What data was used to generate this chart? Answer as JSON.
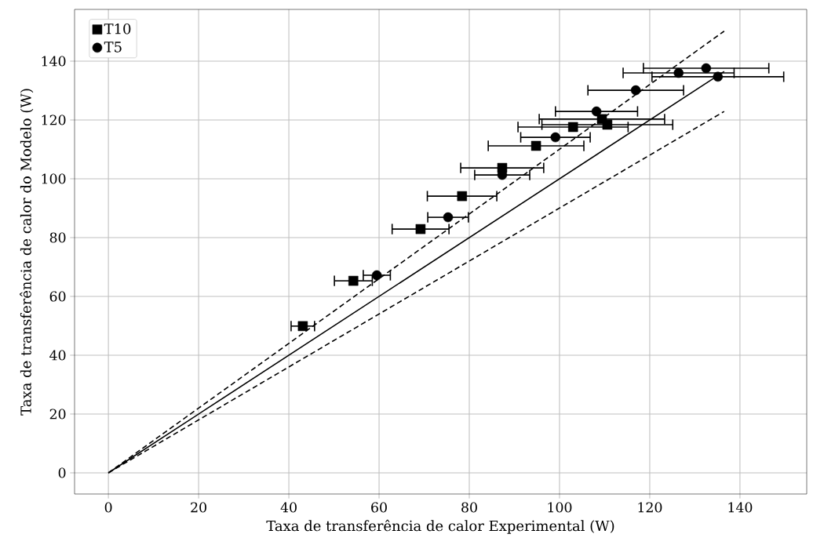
{
  "chart_data": {
    "type": "scatter",
    "xlabel": "Taxa de transferência de calor Experimental (W)",
    "ylabel": "Taxa de transferência de calor do Modelo (W)",
    "xlim": [
      -7.5,
      154.8
    ],
    "ylim": [
      -7.2,
      157.6
    ],
    "xticks": [
      0,
      20,
      40,
      60,
      80,
      100,
      120,
      140
    ],
    "yticks": [
      0,
      20,
      40,
      60,
      80,
      100,
      120,
      140
    ],
    "grid": true,
    "legend": "top left",
    "series": [
      {
        "name": "T10",
        "marker": "square",
        "color": "#000000",
        "x": [
          43.1,
          54.3,
          69.2,
          78.4,
          87.3,
          94.8,
          103.0,
          109.4,
          110.6
        ],
        "values": [
          49.9,
          65.3,
          82.9,
          94.1,
          103.7,
          111.2,
          117.6,
          120.3,
          118.4
        ],
        "xerrors": [
          2.6,
          4.2,
          6.3,
          7.7,
          9.2,
          10.6,
          12.2,
          13.9,
          14.5
        ]
      },
      {
        "name": "T5",
        "marker": "circle",
        "color": "#000000",
        "x": [
          59.5,
          75.3,
          87.3,
          99.1,
          108.2,
          116.9,
          126.4,
          132.5,
          135.1
        ],
        "values": [
          67.2,
          86.9,
          101.3,
          114.1,
          122.9,
          130.1,
          136.0,
          137.6,
          134.7
        ],
        "xerrors": [
          3.0,
          4.5,
          6.1,
          7.7,
          9.1,
          10.6,
          12.3,
          13.9,
          14.6
        ]
      },
      {
        "type": "line",
        "line_style": "solid",
        "color": "#000000",
        "x": [
          0,
          136.5
        ],
        "values": [
          0,
          136.5
        ]
      },
      {
        "type": "line",
        "line_style": "dashed",
        "color": "#000000",
        "x": [
          0,
          136.5
        ],
        "values": [
          0,
          150.2
        ]
      },
      {
        "type": "line",
        "line_style": "dashed",
        "color": "#000000",
        "x": [
          0,
          136.5
        ],
        "values": [
          0,
          122.9
        ]
      }
    ]
  }
}
